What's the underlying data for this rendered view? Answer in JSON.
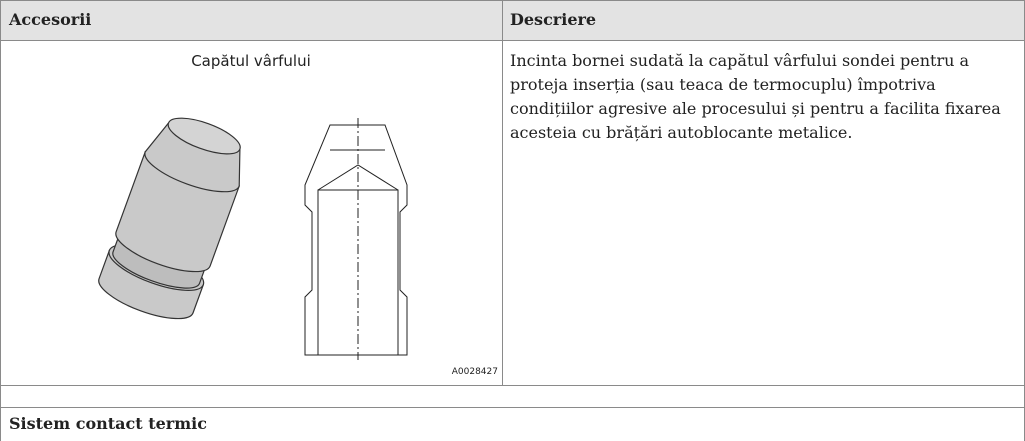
{
  "header": {
    "columns": [
      "Accesorii",
      "Descriere"
    ]
  },
  "rows": [
    {
      "label": "Capătul vârfului",
      "figure_id": "A0028427",
      "description": "Incinta bornei sudată la capătul vârfului sondei pentru a proteja inserția (sau teaca de termocuplu) împotriva condițiilor agresive ale procesului și pentru a facilita fixarea acesteia cu brățări autoblocante metalice."
    }
  ],
  "section": "Sistem contact termic"
}
